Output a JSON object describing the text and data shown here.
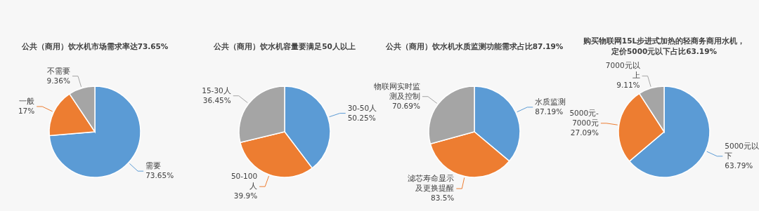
{
  "chart_data": [
    {
      "type": "pie",
      "title": "公共（商用）饮水机市场需求率达73.65%",
      "categories": [
        "需要",
        "一般",
        "不需要"
      ],
      "values": [
        73.65,
        17,
        9.36
      ],
      "value_labels": [
        "73.65%",
        "17%",
        "9.36%"
      ],
      "colors": [
        "#5b9bd5",
        "#ed7d31",
        "#a5a5a5"
      ]
    },
    {
      "type": "pie",
      "title": "公共（商用）饮水机容量要满足50人以上",
      "categories": [
        "30-50人",
        "50-100人",
        "15-30人"
      ],
      "values": [
        50.25,
        39.9,
        36.45
      ],
      "value_labels": [
        "50.25%",
        "39.9%",
        "36.45%"
      ],
      "colors": [
        "#5b9bd5",
        "#ed7d31",
        "#a5a5a5"
      ]
    },
    {
      "type": "pie",
      "title": "公共（商用）饮水机水质监测功能需求占比87.19%",
      "categories": [
        "水质监测",
        "滤芯寿命显示及更换提醒",
        "物联网实时监测及控制"
      ],
      "values": [
        87.19,
        83.5,
        70.69
      ],
      "value_labels": [
        "87.19%",
        "83.5%",
        "70.69%"
      ],
      "colors": [
        "#5b9bd5",
        "#ed7d31",
        "#a5a5a5"
      ]
    },
    {
      "type": "pie",
      "title": "购买物联网15L步进式加热的轻商务商用水机，定价5000元以下占比63.19%",
      "categories": [
        "5000元以下",
        "5000元-7000元",
        "7000元以上"
      ],
      "values": [
        63.79,
        27.09,
        9.11
      ],
      "value_labels": [
        "63.79%",
        "27.09%",
        "9.11%"
      ],
      "colors": [
        "#5b9bd5",
        "#ed7d31",
        "#a5a5a5"
      ]
    }
  ]
}
